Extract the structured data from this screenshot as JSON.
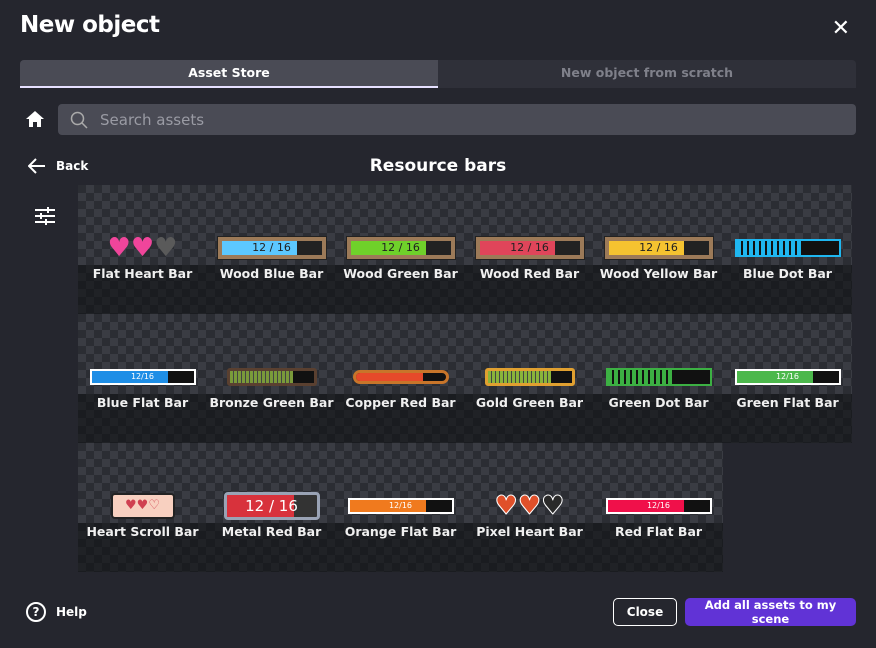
{
  "dialog": {
    "title": "New object",
    "close_icon": "close-icon"
  },
  "tabs": [
    {
      "label": "Asset Store",
      "active": true
    },
    {
      "label": "New object from scratch",
      "active": false
    }
  ],
  "search": {
    "placeholder": "Search assets",
    "value": ""
  },
  "nav": {
    "back_label": "Back",
    "heading": "Resource bars"
  },
  "assets": [
    {
      "name": "Flat Heart Bar",
      "kind": "hearts",
      "colors": [
        "#f0459b",
        "#f0459b",
        "#5a5a5a"
      ]
    },
    {
      "name": "Wood Blue Bar",
      "kind": "wood",
      "text": "12 / 16",
      "color": "#5cc8ff",
      "fill": 0.75
    },
    {
      "name": "Wood Green Bar",
      "kind": "wood",
      "text": "12 / 16",
      "color": "#6fd12a",
      "fill": 0.75
    },
    {
      "name": "Wood Red Bar",
      "kind": "wood",
      "text": "12 / 16",
      "color": "#e0455a",
      "fill": 0.75
    },
    {
      "name": "Wood Yellow Bar",
      "kind": "wood",
      "text": "12 / 16",
      "color": "#f5c330",
      "fill": 0.75
    },
    {
      "name": "Blue Dot Bar",
      "kind": "dot",
      "color": "#1fb7f0",
      "fill": 0.65
    },
    {
      "name": "Blue Flat Bar",
      "kind": "flat",
      "text": "12/16",
      "color": "#1e8ee6",
      "fill": 0.75
    },
    {
      "name": "Bronze Green Bar",
      "kind": "ornate",
      "color": "#7a9a3a",
      "frame": "#5a4030",
      "fill": 0.75
    },
    {
      "name": "Copper Red Bar",
      "kind": "capsule",
      "color": "#e64a2a",
      "frame": "#c8752a",
      "fill": 0.75
    },
    {
      "name": "Gold Green Bar",
      "kind": "ornate",
      "color": "#8ab43a",
      "frame": "#e0a030",
      "fill": 0.75
    },
    {
      "name": "Green Dot Bar",
      "kind": "dot",
      "color": "#3cb043",
      "fill": 0.65
    },
    {
      "name": "Green Flat Bar",
      "kind": "flat",
      "text": "12/16",
      "color": "#4cb84c",
      "fill": 0.75
    },
    {
      "name": "Heart Scroll Bar",
      "kind": "scroll",
      "color": "#f8d0c0"
    },
    {
      "name": "Metal Red Bar",
      "kind": "metal",
      "text": "12 / 16",
      "color": "#d8323c",
      "fill": 0.75
    },
    {
      "name": "Orange Flat Bar",
      "kind": "flat",
      "text": "12/16",
      "color": "#f07a1e",
      "fill": 0.75
    },
    {
      "name": "Pixel Heart Bar",
      "kind": "pixelhearts",
      "colors": [
        "#e0502a",
        "#e0502a",
        "#2a2a2a"
      ]
    },
    {
      "name": "Red Flat Bar",
      "kind": "flat",
      "text": "12/16",
      "color": "#f0104a",
      "fill": 0.75
    }
  ],
  "footer": {
    "help_label": "Help",
    "close_label": "Close",
    "add_label": "Add all assets to my scene"
  },
  "colors": {
    "accent": "#6133d6",
    "background": "#25262e"
  }
}
